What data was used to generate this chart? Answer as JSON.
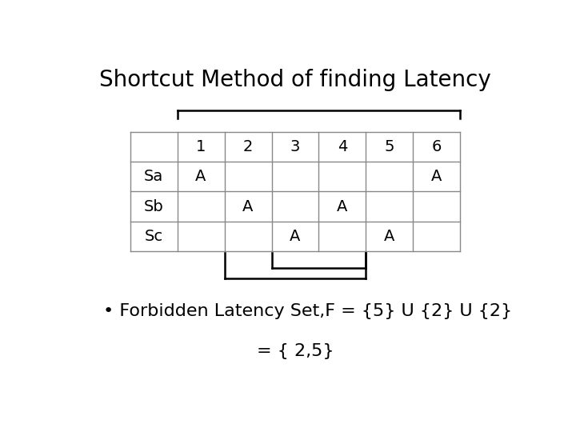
{
  "title": "Shortcut Method of finding Latency",
  "col_headers": [
    "",
    "1",
    "2",
    "3",
    "4",
    "5",
    "6"
  ],
  "rows": [
    [
      "Sa",
      "A",
      "",
      "",
      "",
      "",
      "A"
    ],
    [
      "Sb",
      "",
      "A",
      "",
      "A",
      "",
      ""
    ],
    [
      "Sc",
      "",
      "",
      "A",
      "",
      "A",
      ""
    ]
  ],
  "bullet_line1": "Forbidden Latency Set,F = {5} U {2} U {2}",
  "bullet_line2": "= { 2,5}",
  "bg_color": "#ffffff",
  "text_color": "#000000",
  "title_fontsize": 20,
  "table_fontsize": 14,
  "bullet_fontsize": 16
}
